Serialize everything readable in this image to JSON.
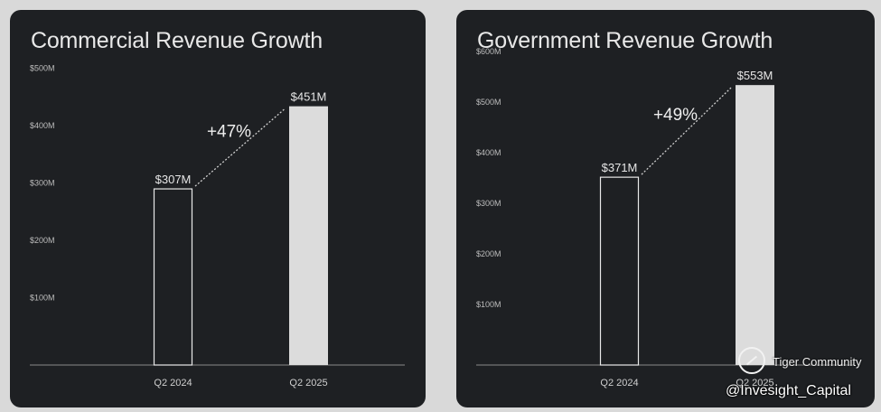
{
  "chart_data": [
    {
      "type": "bar",
      "title": "Commercial Revenue Growth",
      "categories": [
        "Q2 2024",
        "Q2 2025"
      ],
      "values": [
        307,
        451
      ],
      "data_labels": [
        "$307M",
        "$451M"
      ],
      "growth_label": "+47%",
      "yticks": [
        "$100M",
        "$200M",
        "$300M",
        "$400M",
        "$500M"
      ],
      "ytick_values": [
        100,
        200,
        300,
        400,
        500
      ],
      "ylim": [
        0,
        530
      ],
      "xlabel": "",
      "ylabel": "",
      "bar_styles": [
        "outline",
        "filled"
      ]
    },
    {
      "type": "bar",
      "title": "Government Revenue Growth",
      "categories": [
        "Q2 2024",
        "Q2 2025"
      ],
      "values": [
        371,
        553
      ],
      "data_labels": [
        "$371M",
        "$553M"
      ],
      "growth_label": "+49%",
      "yticks": [
        "$100M",
        "$200M",
        "$300M",
        "$400M",
        "$500M",
        "$600M"
      ],
      "ytick_values": [
        100,
        200,
        300,
        400,
        500,
        600
      ],
      "ylim": [
        0,
        630
      ],
      "xlabel": "",
      "ylabel": "",
      "bar_styles": [
        "outline",
        "filled"
      ]
    }
  ],
  "watermark": {
    "brand": "Tiger Community",
    "handle": "@Invesight_Capital"
  },
  "colors": {
    "panel_bg": "#1e2023",
    "page_bg": "#d9d9d9",
    "bar_fill": "#dcdcdc",
    "bar_outline": "#e8e8e8",
    "text": "#e8e8e8"
  }
}
